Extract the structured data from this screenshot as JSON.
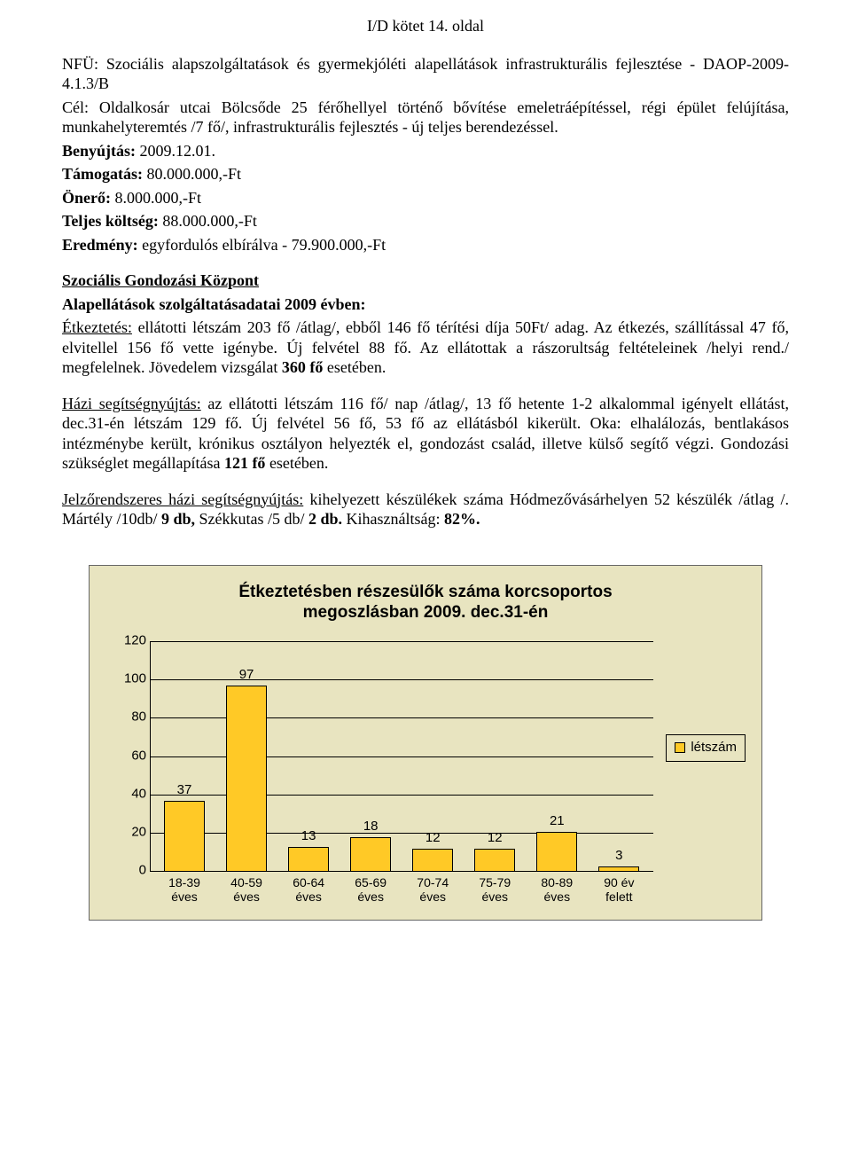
{
  "header": "I/D kötet 14. oldal",
  "p1": {
    "l1a": "NFÜ: Szociális alapszolgáltatások és gyermekjóléti alapellátások infrastrukturális fejlesztése - DAOP-2009-4.1.3/B",
    "l2": "Cél: Oldalkosár utcai Bölcsőde 25 férőhellyel történő bővítése emeletráépítéssel, régi épület felújítása, munkahelyteremtés /7 fő/, infrastrukturális fejlesztés - új teljes berendezéssel.",
    "benyujtas_l": "Benyújtás:",
    "benyujtas_v": " 2009.12.01.",
    "tamogatas_l": "Támogatás:",
    "tamogatas_v": " 80.000.000,-Ft",
    "onero_l": "Önerő:",
    "onero_v": " 8.000.000,-Ft",
    "teljes_l": "Teljes költség:",
    "teljes_v": " 88.000.000,-Ft",
    "eredmeny_l": "Eredmény:",
    "eredmeny_v": " egyfordulós elbírálva - 79.900.000,-Ft"
  },
  "section_title": "Szociális Gondozási Központ",
  "p2": {
    "bold": "Alapellátások szolgáltatásadatai 2009 évben:",
    "etk_u": "Étkeztetés:",
    "etk_rest": " ellátotti létszám 203 fő /átlag/, ebből 146 fő térítési díja 50Ft/ adag. Az étkezés, szállítással 47 fő, elvitellel 156 fő vette igénybe. Új felvétel 88 fő.",
    "etk_l3a": "Az ellátottak a rászorultság feltételeinek /helyi rend./ megfelelnek. Jövedelem vizsgálat ",
    "etk_l3b": "360 fő",
    "etk_l3c": " esetében."
  },
  "p3": {
    "u": "Házi segítségnyújtás:",
    "t1": " az ellátotti létszám 116 fő/ nap /átlag/, 13 fő hetente 1-2 alkalommal igényelt ellátást, dec.31-én létszám 129 fő. Új felvétel 56 fő, 53 fő az ellátásból kikerült. Oka: elhalálozás, bentlakásos intézménybe került, krónikus osztályon helyezték el, gondozást család, illetve külső segítő végzi. Gondozási szükséglet megállapítása ",
    "t2": "121 fő",
    "t3": " esetében."
  },
  "p4": {
    "u": "Jelzőrendszeres házi segítségnyújtás:",
    "t1": " kihelyezett készülékek száma Hódmezővásárhelyen 52 készülék /átlag /. Mártély /10db/ ",
    "b1": "9 db,",
    "t2": " Székkutas /5 db/ ",
    "b2": "2 db.",
    "t3": " Kihasználtság: ",
    "b3": "82%."
  },
  "chart": {
    "title_l1": "Étkeztetésben részesülők száma korcsoportos",
    "title_l2": "megoszlásban 2009. dec.31-én",
    "categories": [
      "18-39",
      "40-59",
      "60-64",
      "65-69",
      "70-74",
      "75-79",
      "80-89",
      "90 év"
    ],
    "categories_l2": [
      "éves",
      "éves",
      "éves",
      "éves",
      "éves",
      "éves",
      "éves",
      "felett"
    ],
    "values": [
      37,
      97,
      13,
      18,
      12,
      12,
      21,
      3
    ],
    "ymax": 120,
    "ytick_step": 20,
    "bar_color": "#ffc926",
    "background": "#e8e4c0",
    "legend_label": "létszám"
  }
}
